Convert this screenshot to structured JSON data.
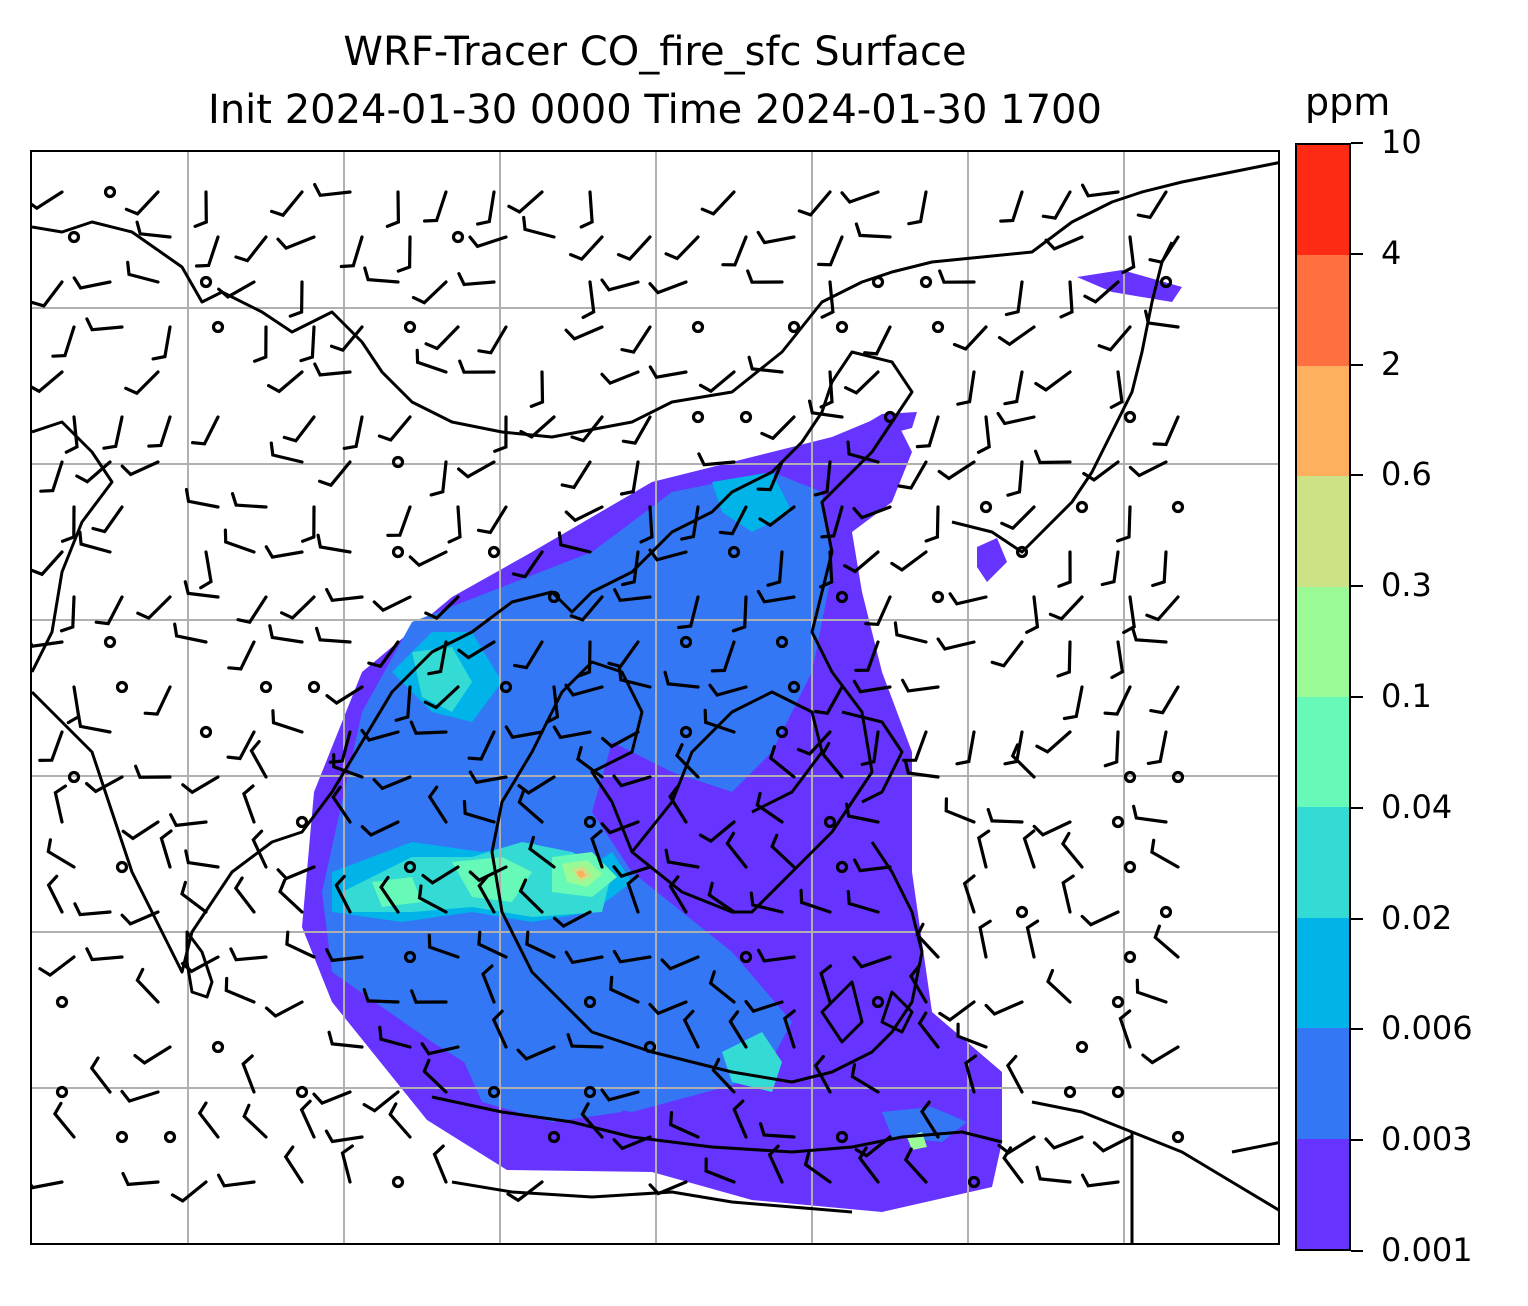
{
  "title": {
    "line1": "WRF-Tracer CO_fire_sfc Surface",
    "line2": "Init 2024-01-30 0000 Time 2024-01-30 1700"
  },
  "colorbar": {
    "unit": "ppm",
    "levels": [
      "0.001",
      "0.003",
      "0.006",
      "0.02",
      "0.04",
      "0.1",
      "0.3",
      "0.6",
      "2",
      "4",
      "10"
    ],
    "colors": [
      "#6633ff",
      "#3377f5",
      "#00b4ea",
      "#33dbd4",
      "#66f9b8",
      "#99fa96",
      "#cde286",
      "#ffb05f",
      "#ff7040",
      "#ff2a14"
    ]
  },
  "map": {
    "variable": "CO_fire_sfc",
    "gridlines": true,
    "coastline_color": "#000000",
    "gridline_color": "#b0b0b0",
    "wind_barbs": true
  }
}
